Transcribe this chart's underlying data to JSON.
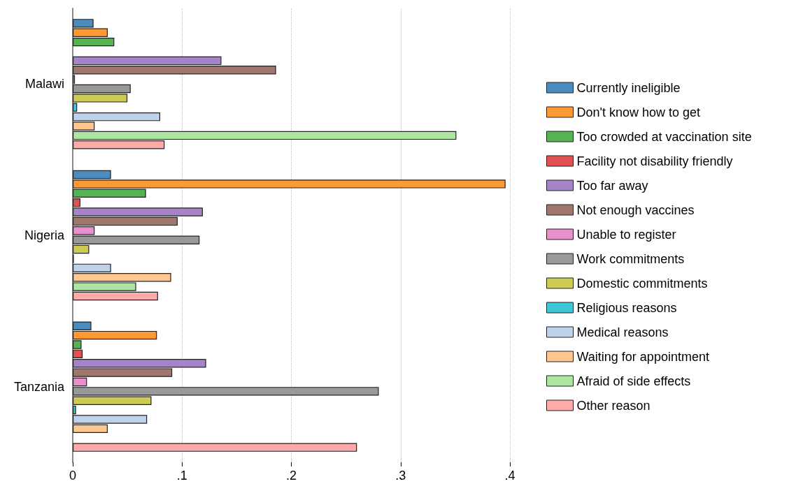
{
  "chart_data": {
    "type": "bar",
    "orientation": "horizontal",
    "categories": [
      "Malawi",
      "Nigeria",
      "Tanzania"
    ],
    "series": [
      {
        "name": "Currently ineligible",
        "color": "#4b8bbe",
        "values": [
          0.019,
          0.035,
          0.017
        ]
      },
      {
        "name": "Don't know how to get",
        "color": "#ff9933",
        "values": [
          0.032,
          0.396,
          0.077
        ]
      },
      {
        "name": "Too crowded at vaccination site",
        "color": "#55b354",
        "values": [
          0.038,
          0.067,
          0.008
        ]
      },
      {
        "name": "Facility not disability friendly",
        "color": "#e05252",
        "values": [
          null,
          0.007,
          0.009
        ]
      },
      {
        "name": "Too far away",
        "color": "#a584c8",
        "values": [
          0.136,
          0.119,
          0.122
        ]
      },
      {
        "name": "Not enough vaccines",
        "color": "#a0776d",
        "values": [
          0.186,
          0.096,
          0.091
        ]
      },
      {
        "name": "Unable to register",
        "color": "#e890cc",
        "values": [
          0.002,
          0.02,
          0.013
        ]
      },
      {
        "name": "Work commitments",
        "color": "#999999",
        "values": [
          0.053,
          0.116,
          0.28
        ]
      },
      {
        "name": "Domestic commitments",
        "color": "#cccc55",
        "values": [
          0.05,
          0.015,
          0.072
        ]
      },
      {
        "name": "Religious reasons",
        "color": "#3ec8d6",
        "values": [
          0.004,
          0.001,
          0.003
        ]
      },
      {
        "name": "Medical reasons",
        "color": "#bfd2ec",
        "values": [
          0.08,
          0.035,
          0.068
        ]
      },
      {
        "name": "Waiting for appointment",
        "color": "#ffc78f",
        "values": [
          0.02,
          0.09,
          0.032
        ]
      },
      {
        "name": "Afraid of side effects",
        "color": "#ade6a0",
        "values": [
          0.351,
          0.058,
          null
        ]
      },
      {
        "name": "Other reason",
        "color": "#ffaaaa",
        "values": [
          0.084,
          0.078,
          0.26
        ]
      }
    ],
    "xlim": [
      0,
      0.4
    ],
    "xticks": [
      {
        "value": 0,
        "label": "0"
      },
      {
        "value": 0.1,
        "label": ".1"
      },
      {
        "value": 0.2,
        "label": ".2"
      },
      {
        "value": 0.3,
        "label": ".3"
      },
      {
        "value": 0.4,
        "label": ".4"
      }
    ],
    "grid": "x",
    "legend": "right"
  }
}
